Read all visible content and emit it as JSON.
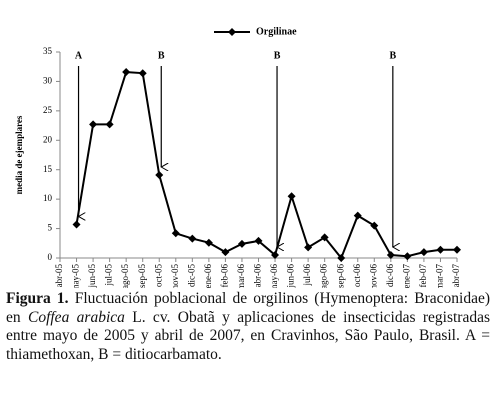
{
  "chart_data": {
    "type": "line",
    "categories": [
      "abr-05",
      "may-05",
      "jun-05",
      "jul-05",
      "ago-05",
      "sep-05",
      "oct-05",
      "nov-05",
      "dic-05",
      "ene-06",
      "feb-06",
      "mar-06",
      "abr-06",
      "may-06",
      "jun-06",
      "jul-06",
      "ago-06",
      "sep-06",
      "oct-06",
      "nov-06",
      "dic-06",
      "ene-07",
      "feb-07",
      "mar-07",
      "abr-07"
    ],
    "series": [
      {
        "name": "Orgilinae",
        "color": "#000000",
        "values": [
          null,
          5.7,
          22.7,
          22.7,
          31.6,
          31.4,
          14.1,
          4.2,
          3.3,
          2.6,
          1.0,
          2.4,
          2.9,
          0.5,
          10.5,
          1.8,
          3.5,
          0,
          7.2,
          5.5,
          0.5,
          0.3,
          1.0,
          1.4,
          1.4
        ]
      }
    ],
    "ylabel": "media de ejemplares",
    "ylim": [
      0,
      35
    ],
    "yticks": [
      0,
      5,
      10,
      15,
      20,
      25,
      30,
      35
    ],
    "legend": "top",
    "annotations": [
      {
        "text": "A",
        "x": "may-05"
      },
      {
        "text": "B",
        "x": "oct-05"
      },
      {
        "text": "B",
        "x": "may-06"
      },
      {
        "text": "B",
        "x": "dic-06"
      }
    ]
  },
  "caption": {
    "label": "Figura 1.",
    "text1": " Fluctuación poblacional de orgilinos (Hymenoptera: Braconidae) en ",
    "italic": "Coffea arabica",
    "text2": " L. cv. Obatã y aplicaciones de insecticidas registradas entre mayo de 2005 y abril de 2007, en Cravinhos, São Paulo, Brasil. A = thiamethoxan, B = ditiocarbamato."
  }
}
